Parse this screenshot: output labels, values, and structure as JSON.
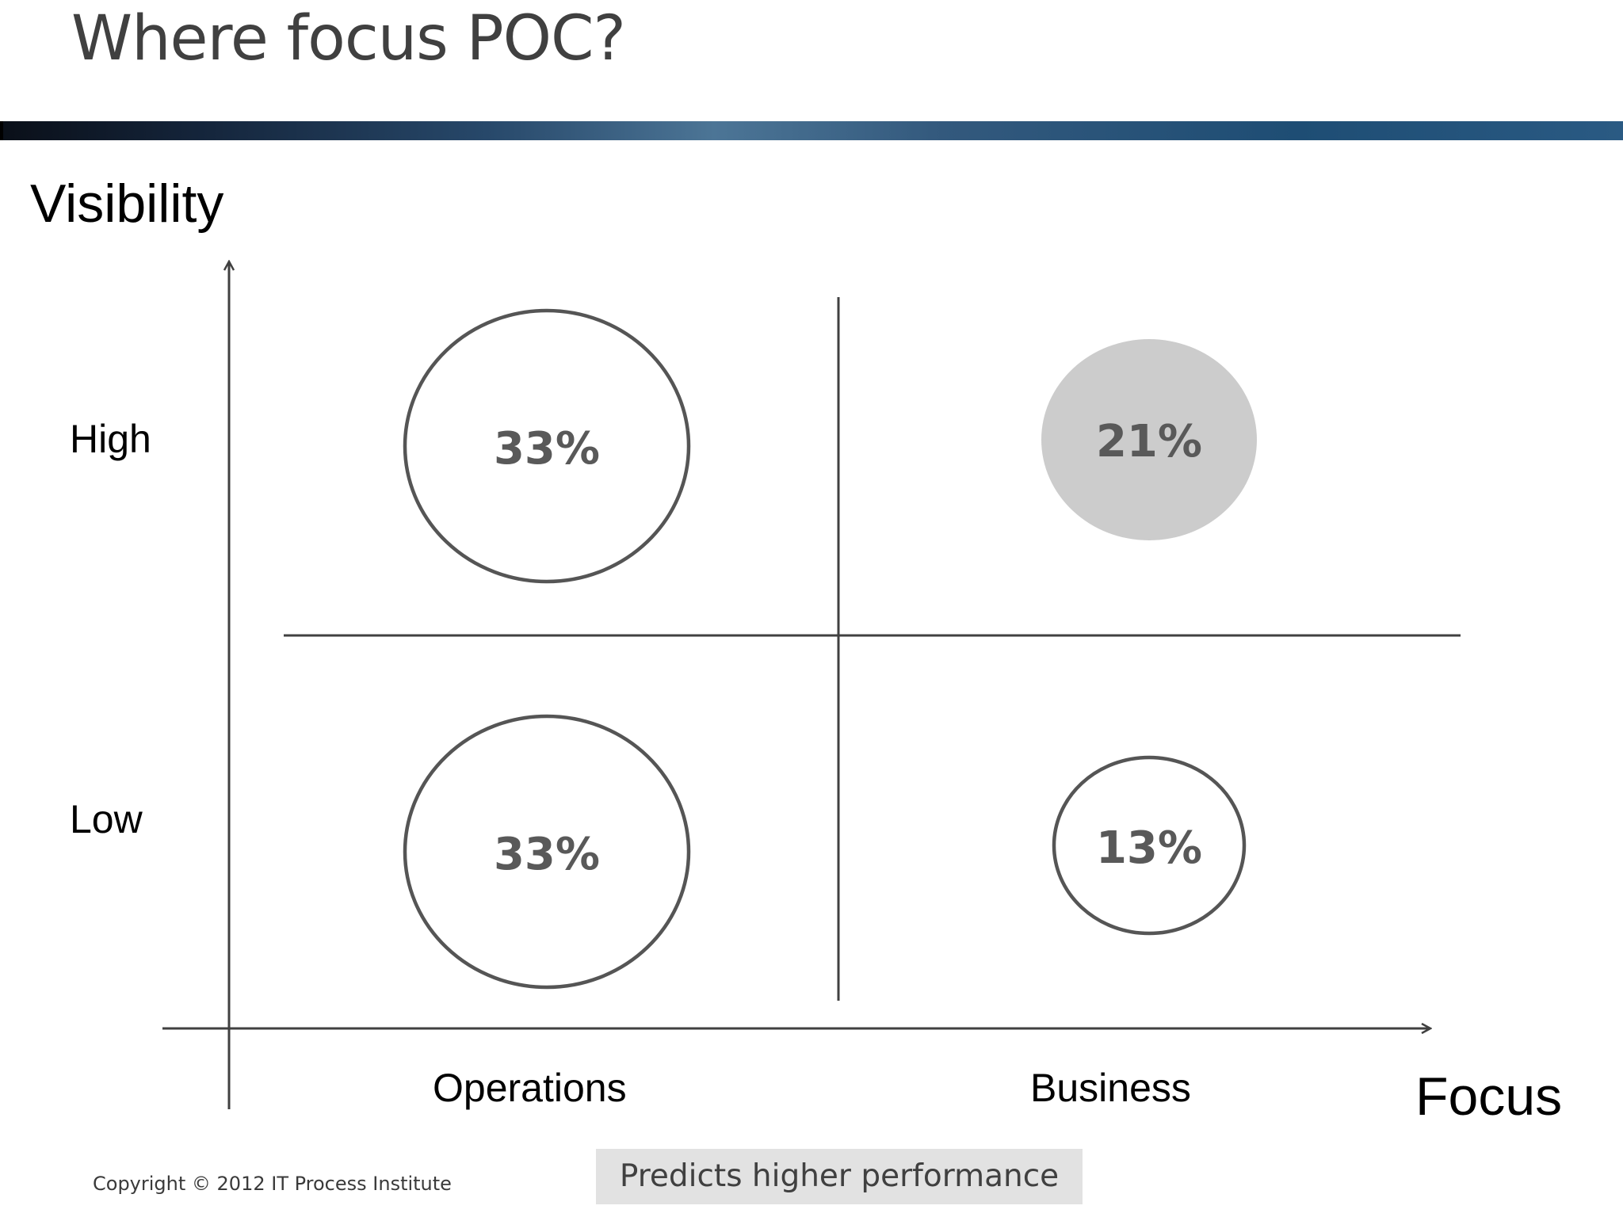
{
  "slide": {
    "title": "Where focus POC?",
    "copyright": "Copyright © 2012 IT Process Institute"
  },
  "axes": {
    "y_label": "Visibility",
    "x_label": "Focus",
    "rows": {
      "high": "High",
      "low": "Low"
    },
    "columns": {
      "operations": "Operations",
      "business": "Business"
    }
  },
  "quadrants": {
    "high_operations": {
      "value": "33%",
      "highlighted": false
    },
    "high_business": {
      "value": "21%",
      "highlighted": true
    },
    "low_operations": {
      "value": "33%",
      "highlighted": false
    },
    "low_business": {
      "value": "13%",
      "highlighted": false
    }
  },
  "legend": {
    "label": "Predicts higher performance",
    "color": "#cccccc"
  },
  "colors": {
    "title_text": "#404040",
    "lines": "#404040",
    "circle_stroke": "#555555",
    "highlight_fill": "#cccccc",
    "percent_text": "#595959"
  }
}
